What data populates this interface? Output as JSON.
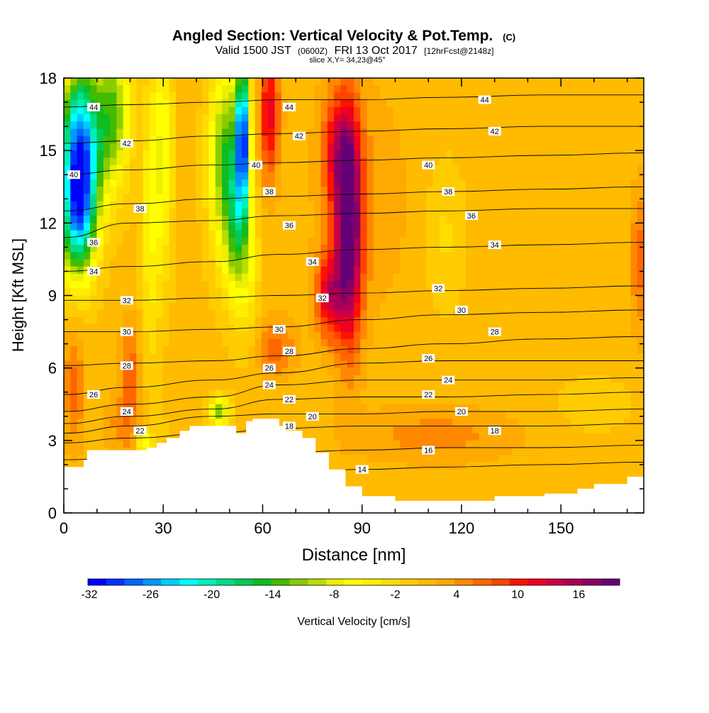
{
  "chart_data": {
    "type": "heatmap",
    "title": "Angled Section: Vertical Velocity & Pot.Temp.",
    "title_mark": "(C)",
    "subtitle_parts": [
      "Valid 1500 JST",
      "(0600Z)",
      "FRI 13 Oct 2017",
      "[12hrFcst@2148z]"
    ],
    "slice_label": "slice X,Y= 34,23@45°",
    "xlabel": "Distance [nm]",
    "ylabel": "Height [Kft MSL]",
    "xlim": [
      0,
      175
    ],
    "ylim": [
      0,
      18
    ],
    "xticks": [
      0,
      30,
      60,
      90,
      120,
      150
    ],
    "yticks": [
      0,
      3,
      6,
      9,
      12,
      15,
      18
    ],
    "colorbar": {
      "label": "Vertical Velocity [cm/s]",
      "tick_labels": [
        "-32",
        "-26",
        "-20",
        "-14",
        "-8",
        "-2",
        "4",
        "10",
        "16"
      ],
      "colors": [
        "#0000ff",
        "#0033ff",
        "#0066ff",
        "#0099ff",
        "#00ccff",
        "#00ffff",
        "#00eebb",
        "#00dd88",
        "#00cc55",
        "#11bb22",
        "#44bb00",
        "#88cc00",
        "#bbdd00",
        "#eeee00",
        "#ffff00",
        "#ffee00",
        "#ffdd00",
        "#ffcc00",
        "#ffbb00",
        "#ffaa00",
        "#ff8800",
        "#ff6600",
        "#ff4400",
        "#ff1100",
        "#ee0022",
        "#cc0044",
        "#aa0055",
        "#880066",
        "#660077"
      ]
    },
    "theta_contours": [
      {
        "label": "14",
        "y": [
          1.4,
          1.4,
          1.5,
          1.6,
          1.8,
          1.9,
          2.0,
          2.1
        ]
      },
      {
        "label": "16",
        "y": [
          2.2,
          2.3,
          2.4,
          2.5,
          2.6,
          2.7,
          2.7,
          2.8
        ]
      },
      {
        "label": "18",
        "y": [
          2.9,
          3.1,
          3.3,
          3.5,
          3.6,
          3.6,
          3.6,
          3.7
        ]
      },
      {
        "label": "20",
        "y": [
          3.3,
          3.6,
          4.0,
          4.1,
          4.1,
          4.2,
          4.2,
          4.3
        ]
      },
      {
        "label": "22",
        "y": [
          3.7,
          4.0,
          4.3,
          4.7,
          4.8,
          4.8,
          4.9,
          5.0
        ]
      },
      {
        "label": "24",
        "y": [
          4.2,
          4.5,
          4.8,
          5.3,
          5.5,
          5.5,
          5.5,
          5.6
        ]
      },
      {
        "label": "26",
        "y": [
          4.9,
          5.2,
          5.5,
          5.8,
          6.2,
          6.3,
          6.3,
          6.3
        ]
      },
      {
        "label": "28",
        "y": [
          6.1,
          6.2,
          6.3,
          6.5,
          6.8,
          7.0,
          7.2,
          7.3
        ]
      },
      {
        "label": "30",
        "y": [
          7.5,
          7.5,
          7.6,
          7.7,
          8.0,
          8.2,
          8.3,
          8.4
        ]
      },
      {
        "label": "32",
        "y": [
          8.8,
          8.8,
          8.9,
          9.0,
          9.1,
          9.2,
          9.3,
          9.4
        ]
      },
      {
        "label": "34",
        "y": [
          10.0,
          10.2,
          10.4,
          10.7,
          10.9,
          11.0,
          11.1,
          11.2
        ]
      },
      {
        "label": "36",
        "y": [
          11.4,
          12.0,
          12.1,
          12.3,
          12.4,
          12.5,
          12.6,
          12.6
        ]
      },
      {
        "label": "38",
        "y": [
          12.5,
          12.8,
          13.0,
          13.1,
          13.2,
          13.3,
          13.4,
          13.5
        ]
      },
      {
        "label": "40",
        "y": [
          14.0,
          14.2,
          14.4,
          14.5,
          14.6,
          14.7,
          14.8,
          14.9
        ]
      },
      {
        "label": "42",
        "y": [
          15.3,
          15.4,
          15.6,
          15.7,
          15.8,
          15.9,
          16.0,
          16.0
        ]
      },
      {
        "label": "44",
        "y": [
          16.8,
          16.9,
          17.0,
          17.1,
          17.1,
          17.2,
          17.3,
          17.3
        ]
      }
    ],
    "contour_x": [
      0,
      20,
      45,
      65,
      90,
      115,
      145,
      175
    ],
    "contour_labels": [
      {
        "text": "44",
        "x": 9,
        "y": 16.8
      },
      {
        "text": "42",
        "x": 19,
        "y": 15.3
      },
      {
        "text": "40",
        "x": 3,
        "y": 14.0
      },
      {
        "text": "38",
        "x": 23,
        "y": 12.6
      },
      {
        "text": "36",
        "x": 9,
        "y": 11.2
      },
      {
        "text": "34",
        "x": 9,
        "y": 10.0
      },
      {
        "text": "32",
        "x": 19,
        "y": 8.8
      },
      {
        "text": "30",
        "x": 19,
        "y": 7.5
      },
      {
        "text": "28",
        "x": 19,
        "y": 6.1
      },
      {
        "text": "26",
        "x": 9,
        "y": 4.9
      },
      {
        "text": "24",
        "x": 19,
        "y": 4.2
      },
      {
        "text": "22",
        "x": 23,
        "y": 3.4
      },
      {
        "text": "44",
        "x": 68,
        "y": 16.8
      },
      {
        "text": "42",
        "x": 71,
        "y": 15.6
      },
      {
        "text": "40",
        "x": 58,
        "y": 14.4
      },
      {
        "text": "38",
        "x": 62,
        "y": 13.3
      },
      {
        "text": "36",
        "x": 68,
        "y": 11.9
      },
      {
        "text": "34",
        "x": 75,
        "y": 10.4
      },
      {
        "text": "32",
        "x": 78,
        "y": 8.9
      },
      {
        "text": "30",
        "x": 65,
        "y": 7.6
      },
      {
        "text": "28",
        "x": 68,
        "y": 6.7
      },
      {
        "text": "26",
        "x": 62,
        "y": 6.0
      },
      {
        "text": "24",
        "x": 62,
        "y": 5.3
      },
      {
        "text": "22",
        "x": 68,
        "y": 4.7
      },
      {
        "text": "20",
        "x": 75,
        "y": 4.0
      },
      {
        "text": "18",
        "x": 68,
        "y": 3.6
      },
      {
        "text": "44",
        "x": 127,
        "y": 17.1
      },
      {
        "text": "42",
        "x": 130,
        "y": 15.8
      },
      {
        "text": "40",
        "x": 110,
        "y": 14.4
      },
      {
        "text": "38",
        "x": 116,
        "y": 13.3
      },
      {
        "text": "36",
        "x": 123,
        "y": 12.3
      },
      {
        "text": "34",
        "x": 130,
        "y": 11.1
      },
      {
        "text": "32",
        "x": 113,
        "y": 9.3
      },
      {
        "text": "30",
        "x": 120,
        "y": 8.4
      },
      {
        "text": "28",
        "x": 130,
        "y": 7.5
      },
      {
        "text": "26",
        "x": 110,
        "y": 6.4
      },
      {
        "text": "24",
        "x": 116,
        "y": 5.5
      },
      {
        "text": "22",
        "x": 110,
        "y": 4.9
      },
      {
        "text": "20",
        "x": 120,
        "y": 4.2
      },
      {
        "text": "18",
        "x": 130,
        "y": 3.4
      },
      {
        "text": "16",
        "x": 110,
        "y": 2.6
      },
      {
        "text": "14",
        "x": 90,
        "y": 1.8
      }
    ],
    "terrain": {
      "x": [
        0,
        3,
        6,
        7,
        10,
        20,
        25,
        28,
        31,
        35,
        38,
        48,
        52,
        55,
        57,
        60,
        65,
        67,
        70,
        72,
        76,
        80,
        85,
        90,
        100,
        110,
        120,
        130,
        145,
        155,
        160,
        170,
        175
      ],
      "y": [
        1.9,
        1.9,
        2.2,
        2.6,
        2.6,
        2.6,
        2.7,
        2.9,
        3.1,
        3.4,
        3.6,
        3.6,
        3.3,
        3.8,
        3.9,
        3.9,
        3.6,
        3.4,
        3.4,
        3.1,
        2.5,
        1.8,
        1.1,
        0.7,
        0.5,
        0.5,
        0.5,
        0.7,
        0.8,
        1.0,
        1.2,
        1.5,
        1.6
      ]
    },
    "velocity_features": [
      {
        "x": 5,
        "y": 14.8,
        "sx": 6,
        "sy": 3.6,
        "v": -32
      },
      {
        "x": 4,
        "y": 12.0,
        "sx": 5,
        "sy": 2.5,
        "v": -14
      },
      {
        "x": 15,
        "y": 16.5,
        "sx": 5,
        "sy": 3,
        "v": -14
      },
      {
        "x": 30,
        "y": 15.0,
        "sx": 3,
        "sy": 5,
        "v": -8
      },
      {
        "x": 26,
        "y": 12.0,
        "sx": 3,
        "sy": 6,
        "v": -6
      },
      {
        "x": 49,
        "y": 14.5,
        "sx": 5,
        "sy": 4,
        "v": -16
      },
      {
        "x": 54,
        "y": 15.5,
        "sx": 2,
        "sy": 3,
        "v": -30
      },
      {
        "x": 52,
        "y": 11.5,
        "sx": 3,
        "sy": 3,
        "v": -10
      },
      {
        "x": 56,
        "y": 10.5,
        "sx": 3,
        "sy": 3.5,
        "v": -6
      },
      {
        "x": 47,
        "y": 4.2,
        "sx": 3,
        "sy": 0.6,
        "v": -14
      },
      {
        "x": 24,
        "y": 2.9,
        "sx": 2,
        "sy": 0.5,
        "v": -10
      },
      {
        "x": 62,
        "y": 16.5,
        "sx": 3,
        "sy": 2.8,
        "v": 12
      },
      {
        "x": 86,
        "y": 11.5,
        "sx": 4,
        "sy": 4.5,
        "v": 20
      },
      {
        "x": 80,
        "y": 9.0,
        "sx": 4,
        "sy": 1.8,
        "v": 12
      },
      {
        "x": 83,
        "y": 15.0,
        "sx": 5,
        "sy": 2.5,
        "v": 10
      },
      {
        "x": 64,
        "y": 6.8,
        "sx": 6,
        "sy": 1.2,
        "v": 6
      },
      {
        "x": 18,
        "y": 3.6,
        "sx": 6,
        "sy": 1.4,
        "v": 4
      },
      {
        "x": 3,
        "y": 5.2,
        "sx": 3,
        "sy": 2.5,
        "v": 6
      },
      {
        "x": 20,
        "y": 6.0,
        "sx": 3,
        "sy": 2,
        "v": 6
      },
      {
        "x": 174,
        "y": 10.5,
        "sx": 3,
        "sy": 3,
        "v": 6
      },
      {
        "x": 112,
        "y": 3.2,
        "sx": 25,
        "sy": 1.2,
        "v": 4
      },
      {
        "x": 90,
        "y": 13.0,
        "sx": 14,
        "sy": 5,
        "v": 3
      },
      {
        "x": 115,
        "y": 11.5,
        "sx": 6,
        "sy": 3,
        "v": -3
      },
      {
        "x": 145,
        "y": 16.5,
        "sx": 6,
        "sy": 2,
        "v": 1
      },
      {
        "x": 160,
        "y": 4.5,
        "sx": 12,
        "sy": 1.2,
        "v": -2
      },
      {
        "x": 28,
        "y": 3.4,
        "sx": 3,
        "sy": 1,
        "v": -2
      }
    ]
  }
}
